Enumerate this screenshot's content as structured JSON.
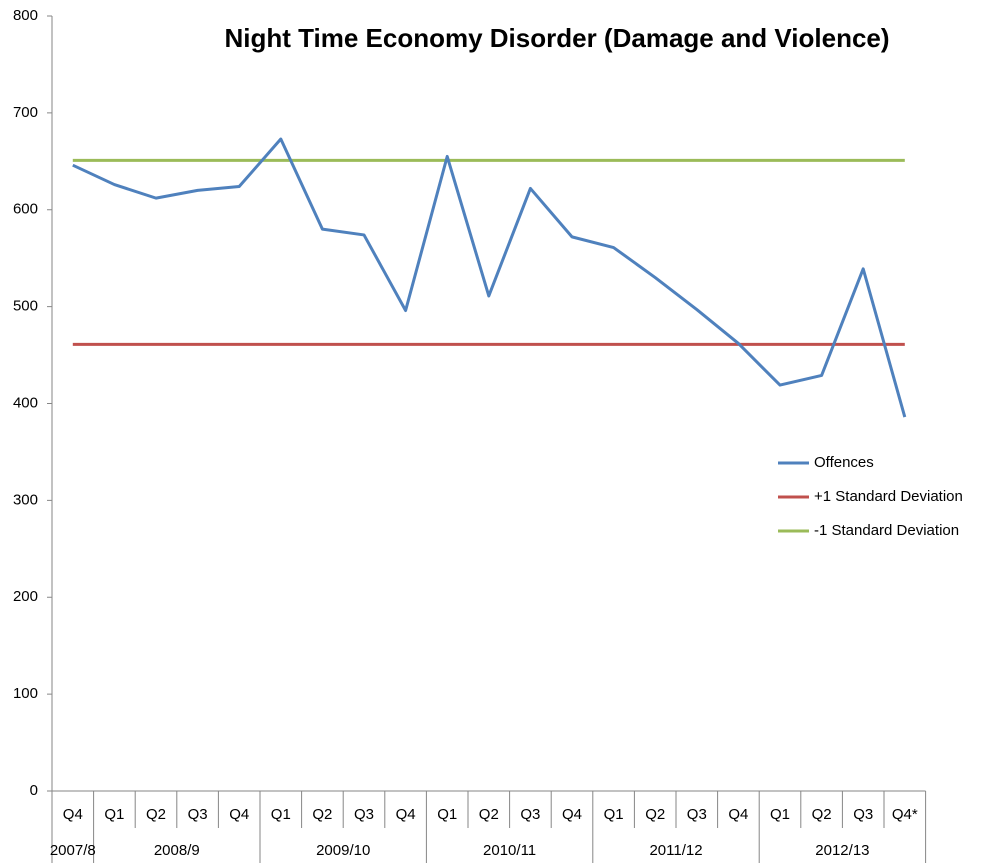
{
  "chart_data": {
    "type": "line",
    "title": "Night Time Economy Disorder (Damage and Violence)",
    "groups": [
      {
        "name": "2007/8",
        "categories": [
          "Q4"
        ]
      },
      {
        "name": "2008/9",
        "categories": [
          "Q1",
          "Q2",
          "Q3",
          "Q4"
        ]
      },
      {
        "name": "2009/10",
        "categories": [
          "Q1",
          "Q2",
          "Q3",
          "Q4"
        ]
      },
      {
        "name": "2010/11",
        "categories": [
          "Q1",
          "Q2",
          "Q3",
          "Q4"
        ]
      },
      {
        "name": "2011/12",
        "categories": [
          "Q1",
          "Q2",
          "Q3",
          "Q4"
        ]
      },
      {
        "name": "2012/13",
        "categories": [
          "Q1",
          "Q2",
          "Q3",
          "Q4*"
        ]
      }
    ],
    "series": [
      {
        "name": "Offences",
        "color": "#4f81bd",
        "values": [
          646,
          626,
          612,
          620,
          624,
          673,
          580,
          574,
          496,
          655,
          511,
          622,
          572,
          561,
          530,
          497,
          462,
          419,
          429,
          539,
          386
        ]
      },
      {
        "name": "+1 Standard Deviation",
        "color": "#c0504d",
        "values": [
          461,
          461,
          461,
          461,
          461,
          461,
          461,
          461,
          461,
          461,
          461,
          461,
          461,
          461,
          461,
          461,
          461,
          461,
          461,
          461,
          461
        ]
      },
      {
        "name": "-1 Standard Deviation",
        "color": "#9bbb59",
        "values": [
          651,
          651,
          651,
          651,
          651,
          651,
          651,
          651,
          651,
          651,
          651,
          651,
          651,
          651,
          651,
          651,
          651,
          651,
          651,
          651,
          651
        ]
      }
    ],
    "ylim": [
      0,
      800
    ],
    "yticks": [
      0,
      100,
      200,
      300,
      400,
      500,
      600,
      700,
      800
    ],
    "grid": false,
    "legend": "right"
  }
}
